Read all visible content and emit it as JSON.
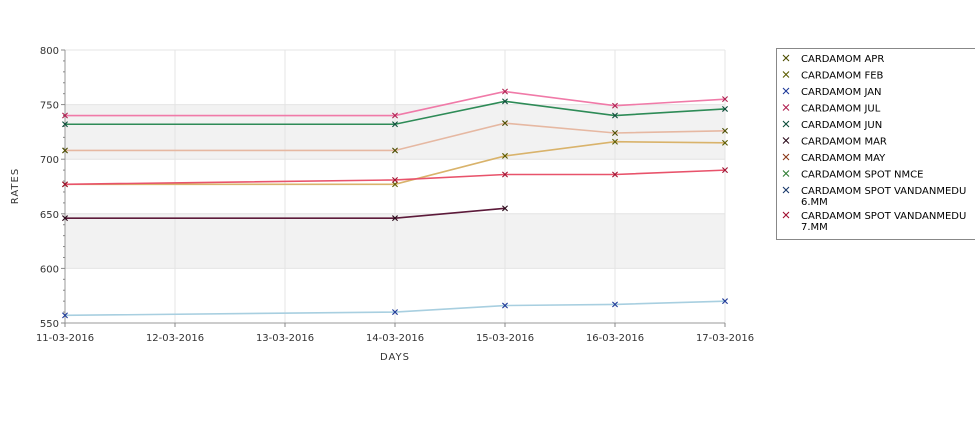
{
  "chart_data": {
    "type": "line",
    "title": "",
    "xlabel": "DAYS",
    "ylabel": "RATES",
    "categories": [
      "11-03-2016",
      "12-03-2016",
      "13-03-2016",
      "14-03-2016",
      "15-03-2016",
      "16-03-2016",
      "17-03-2016"
    ],
    "ylim": [
      550,
      800
    ],
    "yticks": [
      550,
      600,
      650,
      700,
      750,
      800
    ],
    "grid": true,
    "alternating_bands": true,
    "band_color": "#f2f2f2",
    "legend_position": "right",
    "series": [
      {
        "name": "CARDAMOM APR",
        "color": "#e6b8a2",
        "marker_color": "#4d4d00",
        "points": [
          {
            "x": 0,
            "y": 708
          },
          {
            "x": 3,
            "y": 708
          },
          {
            "x": 4,
            "y": 733
          },
          {
            "x": 5,
            "y": 724
          },
          {
            "x": 6,
            "y": 726
          }
        ]
      },
      {
        "name": "CARDAMOM FEB",
        "color": "#d9b36b",
        "marker_color": "#5c5c00",
        "points": [
          {
            "x": 0,
            "y": 677
          },
          {
            "x": 3,
            "y": 677
          },
          {
            "x": 4,
            "y": 703
          },
          {
            "x": 5,
            "y": 716
          },
          {
            "x": 6,
            "y": 715
          }
        ]
      },
      {
        "name": "CARDAMOM JAN",
        "color": "#a8cfe0",
        "marker_color": "#1f3a99",
        "points": [
          {
            "x": 0,
            "y": 557
          },
          {
            "x": 3,
            "y": 560
          },
          {
            "x": 4,
            "y": 566
          },
          {
            "x": 5,
            "y": 567
          },
          {
            "x": 6,
            "y": 570
          }
        ]
      },
      {
        "name": "CARDAMOM JUL",
        "color": "#f07aa8",
        "marker_color": "#b02050",
        "points": [
          {
            "x": 0,
            "y": 740
          },
          {
            "x": 3,
            "y": 740
          },
          {
            "x": 4,
            "y": 762
          },
          {
            "x": 5,
            "y": 749
          },
          {
            "x": 6,
            "y": 755
          }
        ]
      },
      {
        "name": "CARDAMOM JUN",
        "color": "#2e8b57",
        "marker_color": "#0d4d3a",
        "points": [
          {
            "x": 0,
            "y": 732
          },
          {
            "x": 3,
            "y": 732
          },
          {
            "x": 4,
            "y": 753
          },
          {
            "x": 5,
            "y": 740
          },
          {
            "x": 6,
            "y": 746
          }
        ]
      },
      {
        "name": "CARDAMOM MAR",
        "color": "#5c1a3a",
        "marker_color": "#2a0a1a",
        "points": [
          {
            "x": 0,
            "y": 646
          },
          {
            "x": 3,
            "y": 646
          },
          {
            "x": 4,
            "y": 655
          }
        ]
      },
      {
        "name": "CARDAMOM MAY",
        "color": "#e8967a",
        "marker_color": "#8b3a1a",
        "points": []
      },
      {
        "name": "CARDAMOM SPOT NMCE",
        "color": "#5cb85c",
        "marker_color": "#2e7d32",
        "points": []
      },
      {
        "name": "CARDAMOM SPOT VANDANMEDU 6.MM",
        "color": "#7a9cc6",
        "marker_color": "#1a3a6b",
        "points": []
      },
      {
        "name": "CARDAMOM SPOT VANDANMEDU 7.MM",
        "color": "#e8536b",
        "marker_color": "#a01030",
        "points": [
          {
            "x": 0,
            "y": 677
          },
          {
            "x": 3,
            "y": 681
          },
          {
            "x": 4,
            "y": 686
          },
          {
            "x": 5,
            "y": 686
          },
          {
            "x": 6,
            "y": 690
          }
        ]
      }
    ]
  }
}
